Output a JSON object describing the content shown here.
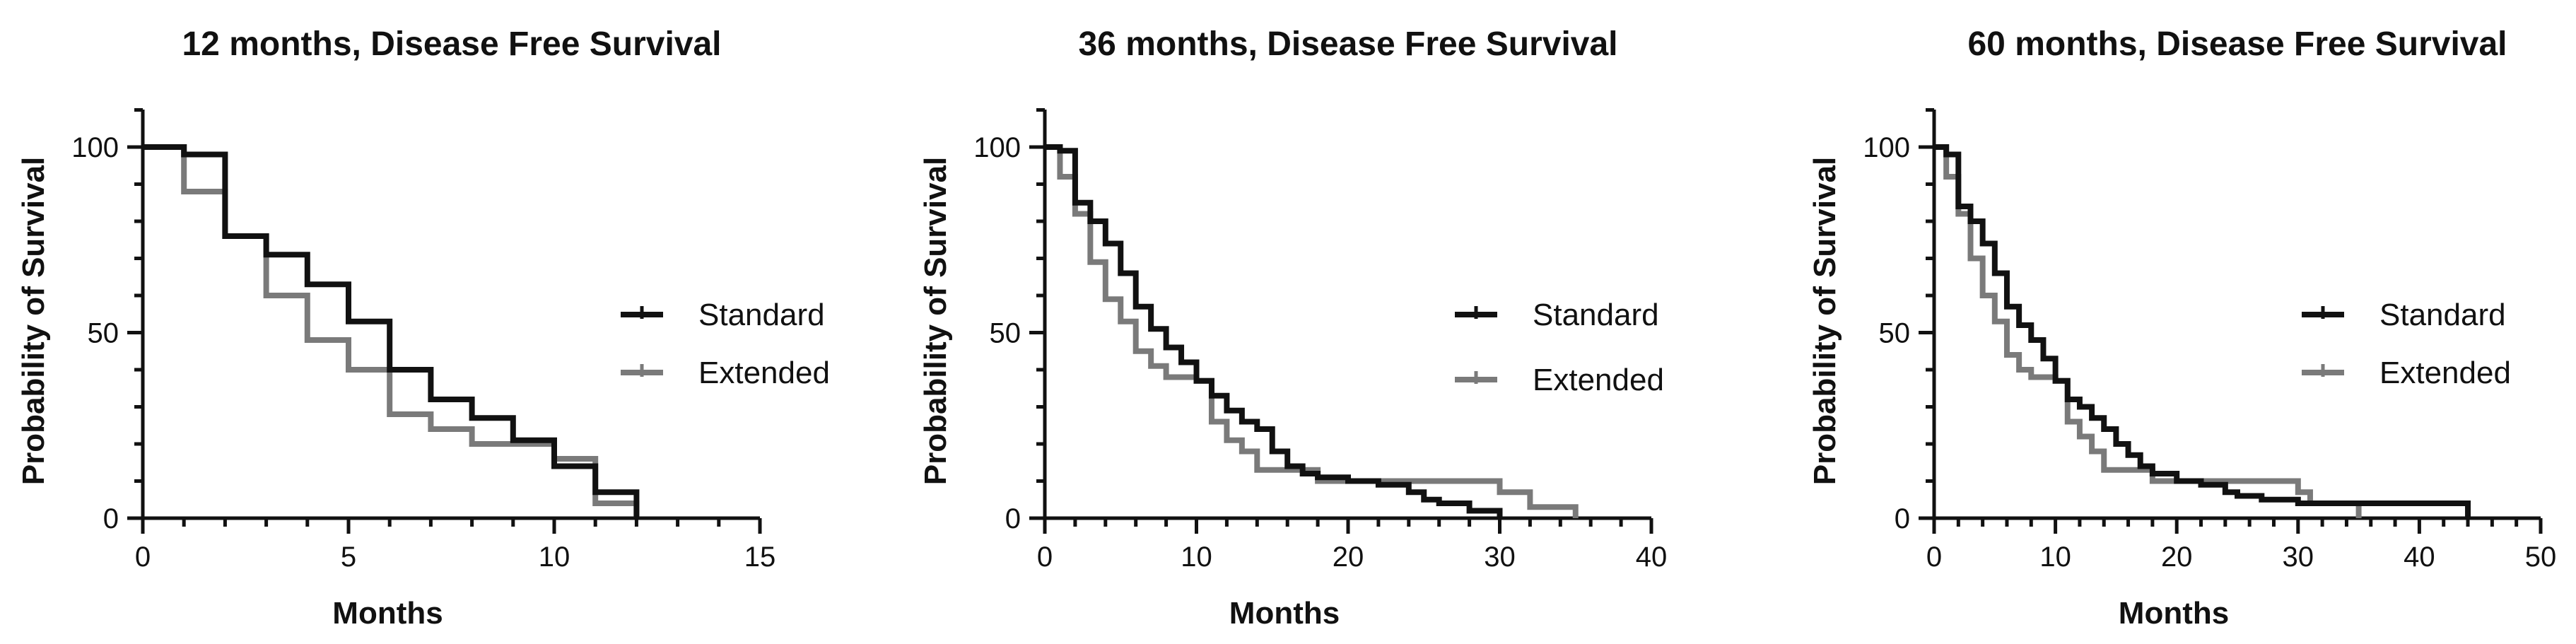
{
  "chart_data": [
    {
      "type": "line",
      "subtype": "kaplan-meier-step",
      "title": "12 months, Disease Free Survival",
      "xlabel": "Months",
      "ylabel": "Probability of Survival",
      "xlim": [
        0,
        15
      ],
      "ylim": [
        0,
        110
      ],
      "xticks": [
        0,
        5,
        10,
        15
      ],
      "yticks": [
        0,
        50,
        100
      ],
      "legend": "right",
      "series": [
        {
          "name": "Standard",
          "color": "#111111",
          "x": [
            0,
            1,
            2,
            3,
            4,
            5,
            6,
            7,
            8,
            9,
            10,
            11,
            12
          ],
          "y": [
            100,
            98,
            76,
            71,
            63,
            53,
            40,
            32,
            27,
            21,
            14,
            7,
            0
          ]
        },
        {
          "name": "Extended",
          "color": "#7a7a7a",
          "x": [
            0,
            1,
            2,
            3,
            4,
            5,
            6,
            7,
            8,
            9,
            10,
            11,
            12
          ],
          "y": [
            100,
            88,
            76,
            60,
            48,
            40,
            28,
            24,
            20,
            20,
            16,
            4,
            0
          ]
        }
      ]
    },
    {
      "type": "line",
      "subtype": "kaplan-meier-step",
      "title": "36 months, Disease Free Survival",
      "xlabel": "Months",
      "ylabel": "Probability of Survival",
      "xlim": [
        0,
        40
      ],
      "ylim": [
        0,
        110
      ],
      "xticks": [
        0,
        10,
        20,
        30,
        40
      ],
      "yticks": [
        0,
        50,
        100
      ],
      "legend": "right",
      "series": [
        {
          "name": "Standard",
          "color": "#111111",
          "x": [
            0,
            1,
            2,
            3,
            4,
            5,
            6,
            7,
            8,
            9,
            10,
            11,
            12,
            13,
            14,
            15,
            16,
            17,
            18,
            20,
            22,
            24,
            25,
            26,
            28,
            30
          ],
          "y": [
            100,
            99,
            85,
            80,
            74,
            66,
            57,
            51,
            46,
            42,
            37,
            33,
            29,
            26,
            24,
            18,
            14,
            12,
            11,
            10,
            9,
            7,
            5,
            4,
            2,
            0
          ]
        },
        {
          "name": "Extended",
          "color": "#7a7a7a",
          "x": [
            0,
            1,
            2,
            3,
            4,
            5,
            6,
            7,
            8,
            10,
            11,
            12,
            13,
            14,
            17,
            18,
            19,
            20,
            21,
            30,
            32,
            35
          ],
          "y": [
            100,
            92,
            82,
            69,
            59,
            53,
            45,
            41,
            38,
            37,
            26,
            21,
            18,
            13,
            13,
            10,
            10,
            10,
            10,
            7,
            3,
            0
          ]
        }
      ]
    },
    {
      "type": "line",
      "subtype": "kaplan-meier-step",
      "title": "60 months, Disease Free Survival",
      "xlabel": "Months",
      "ylabel": "Probability of Survival",
      "xlim": [
        0,
        50
      ],
      "ylim": [
        0,
        110
      ],
      "xticks": [
        0,
        10,
        20,
        30,
        40,
        50
      ],
      "yticks": [
        0,
        50,
        100
      ],
      "legend": "right",
      "series": [
        {
          "name": "Standard",
          "color": "#111111",
          "x": [
            0,
            1,
            2,
            3,
            4,
            5,
            6,
            7,
            8,
            9,
            10,
            11,
            12,
            13,
            14,
            15,
            16,
            17,
            18,
            20,
            22,
            24,
            25,
            27,
            30,
            32,
            44
          ],
          "y": [
            100,
            98,
            84,
            80,
            74,
            66,
            57,
            52,
            48,
            43,
            37,
            32,
            30,
            27,
            24,
            20,
            17,
            14,
            12,
            10,
            9,
            7,
            6,
            5,
            4,
            4,
            0
          ]
        },
        {
          "name": "Extended",
          "color": "#7a7a7a",
          "x": [
            0,
            1,
            2,
            3,
            4,
            5,
            6,
            7,
            8,
            10,
            11,
            12,
            13,
            14,
            17,
            18,
            30,
            31,
            35
          ],
          "y": [
            100,
            92,
            82,
            70,
            60,
            53,
            44,
            40,
            38,
            37,
            26,
            22,
            18,
            13,
            13,
            10,
            7,
            4,
            0
          ]
        }
      ]
    }
  ]
}
